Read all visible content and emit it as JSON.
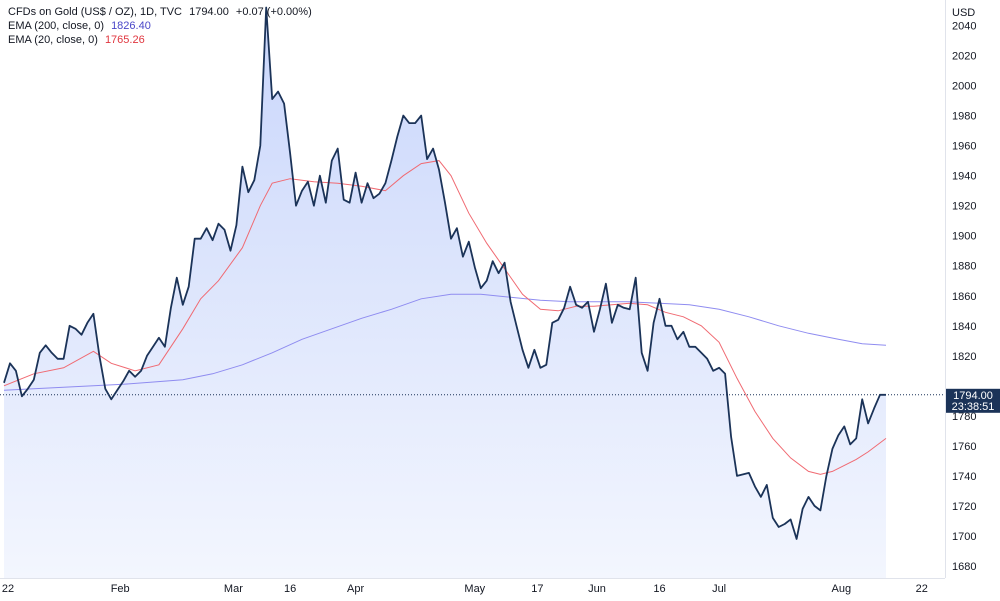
{
  "legend": {
    "symbol": "CFDs on Gold (US$ / OZ), 1D, TVC",
    "last": "1794.00",
    "change": "+0.07 (+0.00%)",
    "ema200_label": "EMA (200, close, 0)",
    "ema200_value": "1826.40",
    "ema20_label": "EMA (20, close, 0)",
    "ema20_value": "1765.26"
  },
  "price_tag": {
    "price": "1794.00",
    "countdown": "23:38:51"
  },
  "colors": {
    "price_line": "#1b3358",
    "area_top": "#c9d6fb",
    "area_bottom": "#f3f6fe",
    "ema200": "#8f8cf0",
    "ema20": "#f06a72",
    "tag_bg": "#1b3358",
    "text": "#131722",
    "border": "#e0e3eb"
  },
  "chart_data": {
    "type": "area",
    "currency": "USD",
    "ylim": [
      1672,
      2057
    ],
    "y_ticks": [
      1680,
      1700,
      1720,
      1740,
      1760,
      1780,
      1800,
      1820,
      1840,
      1860,
      1880,
      1900,
      1920,
      1940,
      1960,
      1980,
      2000,
      2020,
      2040
    ],
    "x_range": [
      0,
      148
    ],
    "x_ticks": [
      {
        "x": 0,
        "label": "22"
      },
      {
        "x": 19.5,
        "label": "Feb"
      },
      {
        "x": 38.5,
        "label": "Mar"
      },
      {
        "x": 48,
        "label": "16"
      },
      {
        "x": 59,
        "label": "Apr"
      },
      {
        "x": 79,
        "label": "May"
      },
      {
        "x": 89.5,
        "label": "17"
      },
      {
        "x": 99.5,
        "label": "Jun"
      },
      {
        "x": 110,
        "label": "16"
      },
      {
        "x": 120,
        "label": "Jul"
      },
      {
        "x": 140.5,
        "label": "Aug"
      },
      {
        "x": 154,
        "label": "22"
      }
    ],
    "series": [
      {
        "name": "CFDs on Gold (US$ / OZ), 1D, TVC",
        "style": "area",
        "x": [
          0,
          1,
          2,
          3,
          4,
          5,
          6,
          7,
          8,
          9,
          10,
          11,
          12,
          13,
          14,
          15,
          16,
          17,
          18,
          19,
          20,
          21,
          22,
          23,
          24,
          25,
          26,
          27,
          28,
          29,
          30,
          31,
          32,
          33,
          34,
          35,
          36,
          37,
          38,
          39,
          40,
          41,
          42,
          43,
          44,
          45,
          46,
          47,
          48,
          49,
          50,
          51,
          52,
          53,
          54,
          55,
          56,
          57,
          58,
          59,
          60,
          61,
          62,
          63,
          64,
          65,
          66,
          67,
          68,
          69,
          70,
          71,
          72,
          73,
          74,
          75,
          76,
          77,
          78,
          79,
          80,
          81,
          82,
          83,
          84,
          85,
          86,
          87,
          88,
          89,
          90,
          91,
          92,
          93,
          94,
          95,
          96,
          97,
          98,
          99,
          100,
          101,
          102,
          103,
          104,
          105,
          106,
          107,
          108,
          109,
          110,
          111,
          112,
          113,
          114,
          115,
          116,
          117,
          118,
          119,
          120,
          121,
          122,
          123,
          124,
          125,
          126,
          127,
          128,
          129,
          130,
          131,
          132,
          133,
          134,
          135,
          136,
          137,
          138,
          139,
          140,
          141,
          142,
          143,
          144,
          145,
          146,
          147,
          148
        ],
        "y": [
          1802,
          1815,
          1810,
          1793,
          1798,
          1804,
          1822,
          1827,
          1822,
          1818,
          1818,
          1840,
          1838,
          1834,
          1842,
          1848,
          1820,
          1798,
          1791,
          1797,
          1803,
          1810,
          1806,
          1810,
          1820,
          1826,
          1832,
          1826,
          1852,
          1872,
          1854,
          1866,
          1898,
          1898,
          1905,
          1897,
          1908,
          1904,
          1890,
          1907,
          1946,
          1929,
          1937,
          1960,
          2052,
          1991,
          1996,
          1988,
          1955,
          1920,
          1930,
          1936,
          1920,
          1940,
          1922,
          1950,
          1958,
          1924,
          1922,
          1942,
          1922,
          1935,
          1925,
          1928,
          1935,
          1950,
          1966,
          1980,
          1975,
          1975,
          1980,
          1951,
          1958,
          1944,
          1922,
          1898,
          1905,
          1886,
          1896,
          1879,
          1865,
          1870,
          1883,
          1875,
          1882,
          1856,
          1840,
          1824,
          1812,
          1824,
          1812,
          1814,
          1842,
          1844,
          1852,
          1866,
          1854,
          1852,
          1856,
          1836,
          1851,
          1868,
          1842,
          1854,
          1852,
          1851,
          1872,
          1822,
          1810,
          1842,
          1858,
          1840,
          1840,
          1831,
          1836,
          1826,
          1826,
          1822,
          1818,
          1810,
          1812,
          1808,
          1766,
          1740,
          1741,
          1742,
          1733,
          1726,
          1734,
          1712,
          1706,
          1708,
          1711,
          1698,
          1718,
          1726,
          1720,
          1717,
          1740,
          1758,
          1767,
          1773,
          1761,
          1765,
          1791,
          1775,
          1785,
          1794,
          1794
        ]
      },
      {
        "name": "EMA (200, close, 0)",
        "style": "line",
        "x": [
          0,
          10,
          20,
          30,
          35,
          40,
          45,
          50,
          55,
          60,
          65,
          70,
          75,
          80,
          85,
          90,
          95,
          100,
          105,
          110,
          115,
          120,
          125,
          130,
          135,
          140,
          144,
          148
        ],
        "y": [
          1797,
          1799,
          1801,
          1804,
          1808,
          1814,
          1822,
          1831,
          1838,
          1845,
          1851,
          1858,
          1861,
          1861,
          1859,
          1857,
          1856,
          1856,
          1856,
          1855,
          1854,
          1851,
          1846,
          1840,
          1835,
          1831,
          1828,
          1827
        ]
      },
      {
        "name": "EMA (20, close, 0)",
        "style": "line",
        "x": [
          0,
          5,
          10,
          15,
          18,
          22,
          26,
          30,
          33,
          36,
          40,
          43,
          45,
          48,
          52,
          56,
          60,
          64,
          67,
          70,
          73,
          75,
          78,
          81,
          84,
          87,
          90,
          93,
          96,
          99,
          102,
          105,
          108,
          111,
          114,
          117,
          120,
          123,
          126,
          129,
          132,
          135,
          137,
          139,
          141,
          143,
          145,
          148
        ],
        "y": [
          1800,
          1808,
          1812,
          1823,
          1815,
          1810,
          1814,
          1838,
          1858,
          1870,
          1892,
          1920,
          1935,
          1938,
          1936,
          1935,
          1933,
          1930,
          1940,
          1948,
          1950,
          1940,
          1915,
          1895,
          1878,
          1861,
          1851,
          1850,
          1853,
          1853,
          1854,
          1855,
          1854,
          1849,
          1846,
          1840,
          1829,
          1805,
          1783,
          1765,
          1752,
          1743,
          1741,
          1743,
          1747,
          1751,
          1756,
          1765
        ]
      }
    ]
  }
}
